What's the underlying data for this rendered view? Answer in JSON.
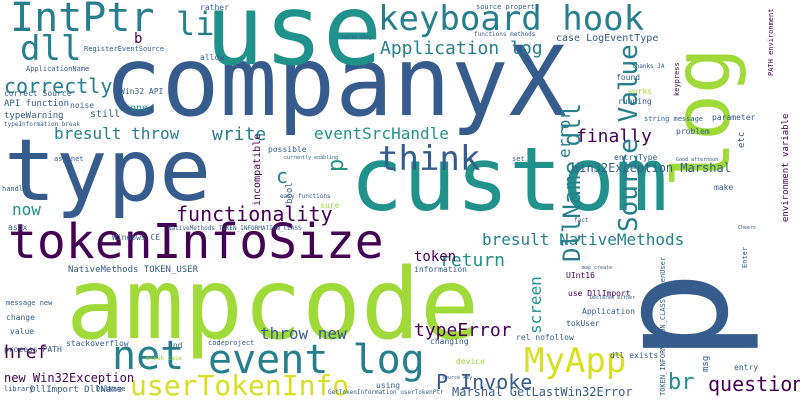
{
  "wordcloud": {
    "palette": {
      "purple": "#46327e",
      "indigo": "#3b528b",
      "blue": "#365c8d",
      "teal": "#277f8e",
      "sea": "#21918c",
      "green": "#35b779",
      "lime": "#a0da39",
      "yellow": "#d9e021",
      "dark": "#440154"
    },
    "words": {
      "companyX": "companyX",
      "type": "type",
      "use": "use",
      "custom": "custom",
      "ampcode": "ampcode",
      "p_big": "p",
      "log_big": "log",
      "tokenInfoSize": "tokenInfoSize",
      "keyboard_hook": "keyboard hook",
      "IntPtr": "IntPtr",
      "dll": "dll",
      "event_log": "event log",
      "net": "net",
      "userTokenInfo": "userTokenInfo",
      "MyApp": "MyApp",
      "Source_Value": "Source Value",
      "DllName_dll": "DllName dll",
      "think": "think",
      "P_Invoke": "P Invoke",
      "functionality": "functionality",
      "Application_log": "Application log",
      "correctly": "correctly",
      "eventSrcHandle": "eventSrcHandle",
      "bresult_throw": "bresult throw",
      "bresult_NativeMethods": "bresult NativeMethods",
      "throw_new": "throw new",
      "typeError": "typeError",
      "question": "question",
      "finally": "finally",
      "write": "write",
      "error": "error",
      "return": "return",
      "token": "token",
      "screen": "screen",
      "Win32Exception_Marshal": "Win32Exception Marshal",
      "li": "li",
      "b": "b",
      "now": "now",
      "href": "href",
      "br": "br",
      "c": "c",
      "p_small": "p",
      "Marshal_GetLastWin32Error": "Marshal GetLastWin32Error",
      "new_Win32Exception": "new Win32Exception",
      "DllImport_DllName": "DllImport DllName",
      "process_PATH": "process PATH",
      "NativeMethods_TOKEN_USER": "NativeMethods TOKEN_USER",
      "RegisterEventSource": "RegisterEventSource",
      "ApplicationName": "ApplicationName",
      "API_function": "API function",
      "typeWarning": "typeWarning",
      "Win32_API": "Win32 API",
      "one": "one",
      "still": "still",
      "noise": "noise",
      "allow": "allow",
      "rather": "rather",
      "source_property": "source property",
      "case_LogEventType": "case LogEventType",
      "found": "found",
      "works": "works",
      "running": "running",
      "string_message": "string message",
      "parameter": "parameter",
      "problem": "problem",
      "entryType": "entryType",
      "incompatible": "incompatible",
      "possible": "possible",
      "bool": "bool",
      "sure": "sure",
      "aspx": "aspx",
      "Windows_CE": "Windows CE",
      "NativeMethods_TOKEN_INFORMATION_CLASS": "NativeMethods TOKEN_INFORMATION_CLASS",
      "information": "information",
      "UInt16": "UInt16",
      "use_DllImport": "use DllImport",
      "Application": "Application",
      "tokUser": "tokUser",
      "rel_nofollow": "rel nofollow",
      "changing": "changing",
      "stackoverflow": "stackoverflow",
      "codeproject": "codeproject",
      "value": "value",
      "change": "change",
      "message_new": "message new",
      "dll_exists": "dll exists",
      "device": "device",
      "using": "using",
      "library": "library",
      "DllName": "DllName",
      "2nd": "2nd",
      "msg": "msg",
      "entry": "entry",
      "make": "make",
      "etc": "etc",
      "GetTokenInformation_userTokenPtr": "GetTokenInformation userTokenPtr",
      "TOKEN_INFORMATION_CLASS_TokenUser": "TOKEN_INFORMATION_CLASS TokenUser",
      "PATH_environment": "PATH environment",
      "environment_variable": "environment variable",
      "keypress": "keypress",
      "asp_net": "asp net",
      "Good_afternoon": "Good afternoon",
      "Cheers": "Cheers",
      "Enter": "Enter",
      "handle": "handle",
      "basic_easy": "basic easy",
      "currently_enabling": "currently enabling",
      "easy_functions": "easy functions",
      "break_case": "break case",
      "source_key": "source key",
      "functions_methods": "functions methods",
      "thanks_JA": "thanks JA",
      "set": "set",
      "fact": "fact",
      "map_create": "map create",
      "typeInformation_break": "typeInformation break",
      "correct_Source": "correct Source",
      "Declared_either": "Declared either"
    }
  }
}
